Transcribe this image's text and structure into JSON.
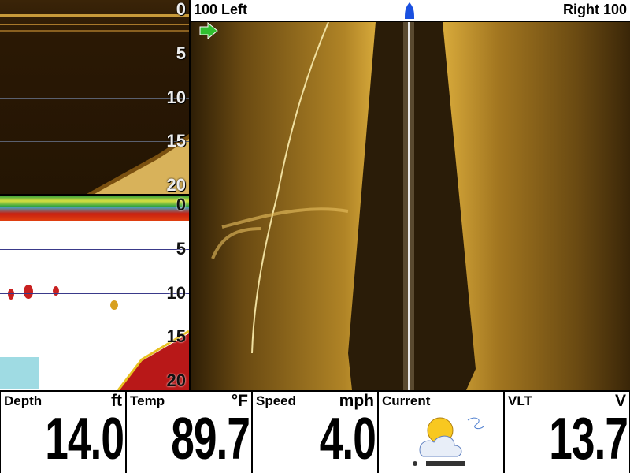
{
  "down_view": {
    "depth_labels": [
      0,
      5,
      10,
      15,
      20
    ]
  },
  "sonar_view": {
    "depth_labels": [
      0,
      5,
      10,
      15,
      20
    ]
  },
  "side_view": {
    "left_label": "100 Left",
    "right_label": "Right 100"
  },
  "readouts": [
    {
      "label": "Depth",
      "unit": "ft",
      "value": "14.0"
    },
    {
      "label": "Temp",
      "unit": "°F",
      "value": "89.7"
    },
    {
      "label": "Speed",
      "unit": "mph",
      "value": "4.0"
    },
    {
      "label": "Current"
    },
    {
      "label": "VLT",
      "unit": "V",
      "value": "13.7"
    }
  ]
}
